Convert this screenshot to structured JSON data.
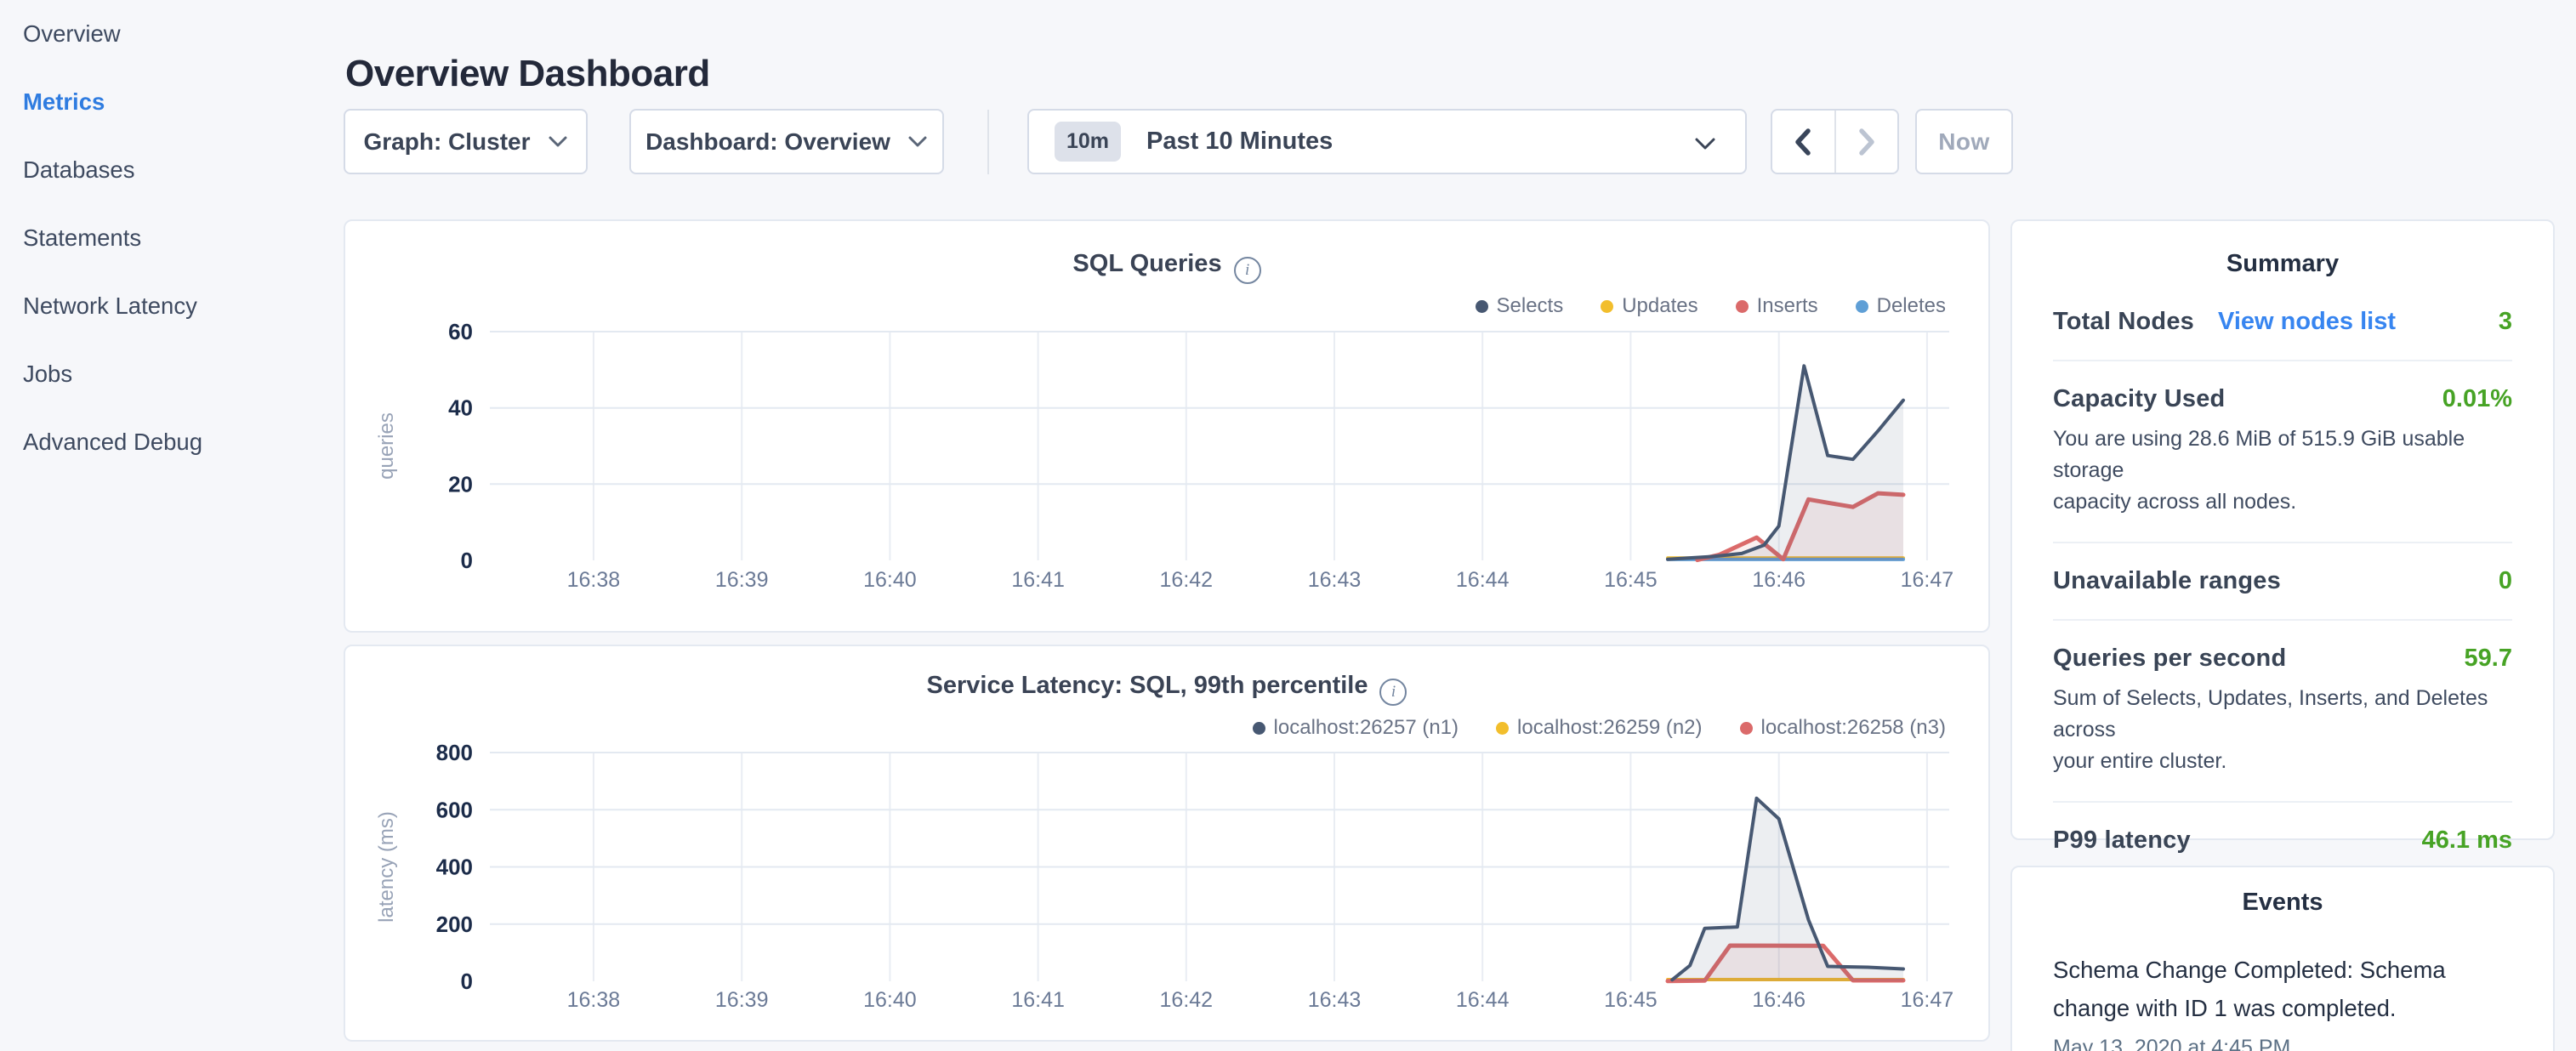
{
  "header": {
    "title": "Overview Dashboard"
  },
  "sidebar": {
    "items": [
      {
        "label": "Overview",
        "active": false
      },
      {
        "label": "Metrics",
        "active": true
      },
      {
        "label": "Databases",
        "active": false
      },
      {
        "label": "Statements",
        "active": false
      },
      {
        "label": "Network Latency",
        "active": false
      },
      {
        "label": "Jobs",
        "active": false
      },
      {
        "label": "Advanced Debug",
        "active": false
      }
    ]
  },
  "toolbar": {
    "graph_label": "Graph: Cluster",
    "dashboard_label": "Dashboard: Overview",
    "range_badge": "10m",
    "range_label": "Past 10 Minutes",
    "now_label": "Now"
  },
  "colors": {
    "accent_blue": "#3785f0",
    "sidebar_active": "#2f7ce0",
    "value_green": "#47a325",
    "series_navy": "#475872",
    "series_yellow": "#f2be2c",
    "series_red": "#db6a6a",
    "series_blue": "#5f9fd6"
  },
  "chart_data": [
    {
      "type": "area",
      "title": "SQL Queries",
      "ylabel": "queries",
      "xlabel": "",
      "grid": true,
      "legend_position": "top-right",
      "xlim": [
        37.3,
        47.15
      ],
      "ylim": [
        0,
        60
      ],
      "yticks": [
        0,
        20,
        40,
        60
      ],
      "xticks": [
        {
          "v": 38,
          "label": "16:38"
        },
        {
          "v": 39,
          "label": "16:39"
        },
        {
          "v": 40,
          "label": "16:40"
        },
        {
          "v": 41,
          "label": "16:41"
        },
        {
          "v": 42,
          "label": "16:42"
        },
        {
          "v": 43,
          "label": "16:43"
        },
        {
          "v": 44,
          "label": "16:44"
        },
        {
          "v": 45,
          "label": "16:45"
        },
        {
          "v": 46,
          "label": "16:46"
        },
        {
          "v": 47,
          "label": "16:47"
        }
      ],
      "legend": [
        {
          "name": "Selects",
          "color": "#475872"
        },
        {
          "name": "Updates",
          "color": "#f2be2c"
        },
        {
          "name": "Inserts",
          "color": "#db6a6a"
        },
        {
          "name": "Deletes",
          "color": "#5f9fd6"
        }
      ],
      "series": [
        {
          "name": "Updates",
          "color": "#f2be2c",
          "fill": "none",
          "width": 4,
          "points": [
            [
              45.25,
              0.6
            ],
            [
              46.84,
              0.6
            ]
          ]
        },
        {
          "name": "Deletes",
          "color": "#5f9fd6",
          "fill": "none",
          "width": 4,
          "points": [
            [
              45.25,
              0.25
            ],
            [
              46.84,
              0.25
            ]
          ]
        },
        {
          "name": "Inserts",
          "color": "#db6a6a",
          "fill": "rgba(219,106,106,0.10)",
          "width": 5,
          "points": [
            [
              45.45,
              0.1
            ],
            [
              45.6,
              1.5
            ],
            [
              45.85,
              6
            ],
            [
              46.03,
              0.3
            ],
            [
              46.2,
              16
            ],
            [
              46.35,
              15
            ],
            [
              46.5,
              14
            ],
            [
              46.67,
              17.6
            ],
            [
              46.84,
              17.2
            ]
          ]
        },
        {
          "name": "Selects",
          "color": "#475872",
          "fill": "rgba(71,88,114,0.10)",
          "width": 4,
          "points": [
            [
              45.25,
              0.3
            ],
            [
              45.55,
              1
            ],
            [
              45.75,
              1.8
            ],
            [
              45.9,
              4
            ],
            [
              46.0,
              9
            ],
            [
              46.17,
              51
            ],
            [
              46.33,
              27.5
            ],
            [
              46.5,
              26.5
            ],
            [
              46.67,
              34
            ],
            [
              46.84,
              42
            ]
          ]
        }
      ]
    },
    {
      "type": "area",
      "title": "Service Latency: SQL, 99th percentile",
      "ylabel": "latency (ms)",
      "xlabel": "",
      "grid": true,
      "legend_position": "top-right",
      "xlim": [
        37.3,
        47.15
      ],
      "ylim": [
        0,
        800
      ],
      "yticks": [
        0,
        200,
        400,
        600,
        800
      ],
      "xticks": [
        {
          "v": 38,
          "label": "16:38"
        },
        {
          "v": 39,
          "label": "16:39"
        },
        {
          "v": 40,
          "label": "16:40"
        },
        {
          "v": 41,
          "label": "16:41"
        },
        {
          "v": 42,
          "label": "16:42"
        },
        {
          "v": 43,
          "label": "16:43"
        },
        {
          "v": 44,
          "label": "16:44"
        },
        {
          "v": 45,
          "label": "16:45"
        },
        {
          "v": 46,
          "label": "16:46"
        },
        {
          "v": 47,
          "label": "16:47"
        }
      ],
      "legend": [
        {
          "name": "localhost:26257 (n1)",
          "color": "#475872"
        },
        {
          "name": "localhost:26259 (n2)",
          "color": "#f2be2c"
        },
        {
          "name": "localhost:26258 (n3)",
          "color": "#db6a6a"
        }
      ],
      "series": [
        {
          "name": "localhost:26259 (n2)",
          "color": "#f2be2c",
          "fill": "none",
          "width": 4,
          "points": [
            [
              45.25,
              6
            ],
            [
              46.84,
              6
            ]
          ]
        },
        {
          "name": "localhost:26258 (n3)",
          "color": "#db6a6a",
          "fill": "rgba(219,106,106,0.10)",
          "width": 5,
          "points": [
            [
              45.25,
              0.5
            ],
            [
              45.5,
              2
            ],
            [
              45.67,
              125
            ],
            [
              46.3,
              124
            ],
            [
              46.5,
              3
            ],
            [
              46.84,
              3
            ]
          ]
        },
        {
          "name": "localhost:26257 (n1)",
          "color": "#475872",
          "fill": "rgba(71,88,114,0.10)",
          "width": 4,
          "points": [
            [
              45.28,
              5
            ],
            [
              45.4,
              55
            ],
            [
              45.5,
              185
            ],
            [
              45.72,
              190
            ],
            [
              45.85,
              640
            ],
            [
              46.0,
              568
            ],
            [
              46.2,
              215
            ],
            [
              46.33,
              52
            ],
            [
              46.6,
              49
            ],
            [
              46.84,
              43
            ]
          ]
        }
      ]
    }
  ],
  "summary": {
    "title": "Summary",
    "rows": [
      {
        "label": "Total Nodes",
        "link": "View nodes list",
        "value": "3"
      },
      {
        "label": "Capacity Used",
        "value": "0.01%",
        "subtext": "You are using 28.6 MiB of 515.9 GiB usable storage\ncapacity across all nodes."
      },
      {
        "label": "Unavailable ranges",
        "value": "0"
      },
      {
        "label": "Queries per second",
        "value": "59.7",
        "subtext": "Sum of Selects, Updates, Inserts, and Deletes across\nyour entire cluster."
      },
      {
        "label": "P99 latency",
        "value": "46.1 ms"
      }
    ]
  },
  "events": {
    "title": "Events",
    "items": [
      {
        "message": "Schema Change Completed: Schema\nchange with ID 1 was completed.",
        "timestamp": "May 13, 2020 at 4:45 PM"
      }
    ]
  }
}
